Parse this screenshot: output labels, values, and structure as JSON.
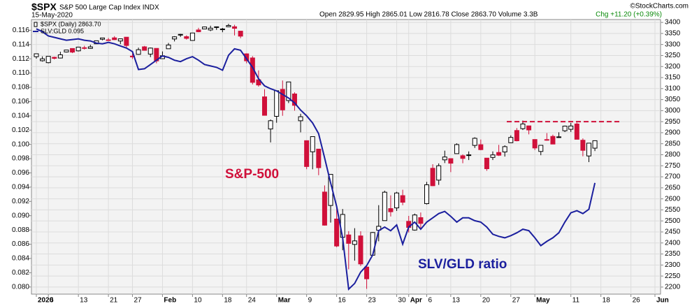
{
  "header": {
    "symbol": "$SPX",
    "name": "S&P 500 Large Cap Index INDX",
    "date": "15-May-2020",
    "source": "©StockCharts.com",
    "summary": "Open 2829.95  High 2865.01  Low 2816.78  Close 2863.70  Volume 3.3B",
    "change": "Chg +11.20 (+0.39%)"
  },
  "chart_data": {
    "type": "candlestick",
    "categories": [
      "2020",
      null,
      "6",
      null,
      null,
      null,
      null,
      "13",
      null,
      null,
      null,
      null,
      "21",
      null,
      null,
      null,
      "27",
      null,
      null,
      null,
      null,
      "Feb",
      null,
      null,
      null,
      null,
      "10",
      null,
      null,
      null,
      null,
      "18",
      null,
      null,
      null,
      "24",
      null,
      null,
      null,
      null,
      "Mar",
      null,
      null,
      null,
      null,
      "9",
      null,
      null,
      null,
      null,
      "16",
      null,
      null,
      null,
      null,
      "23",
      null,
      null,
      null,
      null,
      "30",
      null,
      "Apr",
      null,
      null,
      "6",
      null,
      null,
      null,
      "13",
      null,
      null,
      null,
      null,
      "20",
      null,
      null,
      null,
      null,
      "27",
      null,
      null,
      null,
      "May",
      null,
      null,
      null,
      null,
      null,
      "11",
      null,
      null,
      null,
      null,
      "18",
      null,
      null,
      null,
      null,
      "26",
      null,
      null,
      null,
      "Jun"
    ],
    "ylim": [
      0.079,
      0.1175
    ],
    "yticks": [
      {
        "value": 0.08,
        "label": "0.080"
      },
      0.082,
      0.084,
      0.086,
      0.088,
      {
        "value": 0.09,
        "label": "0.090"
      },
      0.092,
      0.094,
      0.096,
      0.098,
      {
        "value": 0.1,
        "label": "0.100"
      },
      0.102,
      0.104,
      0.106,
      0.108,
      {
        "value": 0.11,
        "label": "0.110"
      },
      0.112,
      0.114,
      0.116
    ],
    "y2lim": [
      2168,
      3413
    ],
    "y2ticks": [
      2200,
      2250,
      2300,
      2350,
      2400,
      2450,
      2500,
      2550,
      2600,
      2650,
      2700,
      2750,
      2800,
      2850,
      2900,
      2950,
      3000,
      3050,
      3100,
      3150,
      3200,
      3250,
      3300,
      3350,
      3400
    ],
    "grid": true,
    "series": [
      {
        "name": "$SPX (Daily) 2863.70",
        "type": "candlestick",
        "axis": "y2",
        "up_color": "#ffffff",
        "down_color": "#d0103a",
        "edge_color": "#000000",
        "open": [
          3244.67,
          3226.36,
          3217.55,
          3241.86,
          3238.59,
          3266.03,
          3281.81,
          3271.13,
          3285.35,
          3282.27,
          3302.97,
          3323.66,
          3321.03,
          3330.02,
          3315.77,
          3333.1,
          3247.16,
          3255.35,
          3289.46,
          3256.45,
          3282.33,
          3235.66,
          3280.61,
          3324.91,
          3344.92,
          3335.54,
          3318.28,
          3365.87,
          3370.5,
          3365.9,
          3378.08,
          3369.04,
          3380.39,
          3380.45,
          3360.5,
          3257.61,
          3238.94,
          3139.9,
          3062.54,
          2916.9,
          2974.28,
          3096.46,
          3045.75,
          3075.7,
          2954.2,
          2863.89,
          2813.48,
          2825.6,
          2630.86,
          2569.99,
          2508.59,
          2425.66,
          2436.5,
          2393.48,
          2431.94,
          2290.71,
          2344.44,
          2457.77,
          2501.29,
          2555.87,
          2558.98,
          2614.69,
          2498.08,
          2458.54,
          2514.92,
          2578.28,
          2738.65,
          2685.0,
          2776.99,
          2782.46,
          2805.1,
          2795.64,
          2799.34,
          2842.43,
          2845.62,
          2784.81,
          2787.89,
          2810.42,
          2812.64,
          2854.65,
          2909.96,
          2918.46,
          2930.91,
          2869.09,
          2815.01,
          2868.88,
          2883.14,
          2878.26,
          2908.83,
          2915.46,
          2939.5,
          2865.86,
          2794.54,
          2829.95,
          null,
          null,
          null,
          null,
          null,
          null,
          null,
          null,
          null,
          null
        ],
        "high": [
          3258.14,
          3246.15,
          3246.84,
          3244.91,
          3267.07,
          3275.58,
          3282.99,
          3288.13,
          3294.25,
          3298.66,
          3317.11,
          3329.88,
          3329.79,
          3337.77,
          3326.88,
          3333.18,
          3258.85,
          3285.78,
          3293.47,
          3285.91,
          3282.33,
          3268.44,
          3306.92,
          3337.58,
          3347.96,
          3341.42,
          3352.26,
          3375.63,
          3381.47,
          3385.09,
          3380.69,
          3375.01,
          3393.52,
          3389.15,
          3360.76,
          3259.81,
          3246.99,
          3182.51,
          3097.07,
          2959.72,
          3090.96,
          3136.72,
          3130.97,
          3083.04,
          2985.93,
          2863.89,
          2882.59,
          2825.6,
          2660.95,
          2711.33,
          2562.98,
          2553.93,
          2453.57,
          2466.97,
          2453.01,
          2300.73,
          2449.71,
          2571.42,
          2637.01,
          2615.91,
          2631.8,
          2641.39,
          2522.75,
          2533.22,
          2538.18,
          2676.85,
          2756.89,
          2760.75,
          2818.57,
          2782.46,
          2851.85,
          2801.88,
          2815.1,
          2879.22,
          2868.98,
          2785.54,
          2815.1,
          2844.9,
          2842.71,
          2887.72,
          2921.15,
          2954.86,
          2930.91,
          2869.09,
          2844.24,
          2898.23,
          2891.11,
          2901.92,
          2932.16,
          2944.25,
          2945.82,
          2874.14,
          2852.8,
          2865.01,
          null,
          null,
          null,
          null,
          null,
          null,
          null,
          null,
          null,
          null
        ],
        "low": [
          3235.53,
          3222.34,
          3214.64,
          3232.43,
          3236.67,
          3263.67,
          3260.86,
          3268.43,
          3277.19,
          3280.69,
          3302.82,
          3318.86,
          3316.61,
          3320.04,
          3301.87,
          3281.53,
          3234.5,
          3253.22,
          3271.89,
          3242.8,
          3214.68,
          3235.66,
          3280.61,
          3313.75,
          3334.39,
          3322.12,
          3317.77,
          3355.61,
          3369.72,
          3360.52,
          3366.15,
          3355.61,
          3378.83,
          3341.02,
          3328.45,
          3214.65,
          3118.77,
          3108.99,
          2977.39,
          2855.84,
          2945.19,
          2976.63,
          3034.38,
          2999.83,
          2901.54,
          2734.43,
          2734.0,
          2707.22,
          2478.86,
          2492.37,
          2380.94,
          2367.04,
          2280.52,
          2319.78,
          2295.56,
          2191.86,
          2344.44,
          2407.53,
          2500.72,
          2520.02,
          2545.28,
          2571.15,
          2447.49,
          2455.79,
          2459.96,
          2574.57,
          2657.67,
          2663.3,
          2762.36,
          2721.17,
          2805.1,
          2761.54,
          2775.95,
          2830.88,
          2820.43,
          2727.1,
          2775.95,
          2794.26,
          2791.76,
          2852.89,
          2860.71,
          2912.16,
          2892.47,
          2821.61,
          2797.85,
          2863.55,
          2847.65,
          2876.48,
          2902.88,
          2903.44,
          2869.59,
          2793.15,
          2766.64,
          2816.78,
          null,
          null,
          null,
          null,
          null,
          null,
          null,
          null,
          null,
          null
        ],
        "close": [
          3257.85,
          3234.85,
          3246.28,
          3237.18,
          3253.05,
          3274.7,
          3265.35,
          3288.13,
          3283.15,
          3289.29,
          3316.81,
          3329.62,
          3320.79,
          3321.75,
          3325.54,
          3295.47,
          3243.63,
          3276.24,
          3273.4,
          3283.66,
          3225.52,
          3248.92,
          3297.59,
          3334.69,
          3345.78,
          3327.71,
          3352.09,
          3357.75,
          3379.45,
          3373.94,
          3380.16,
          3370.29,
          3386.15,
          3373.23,
          3337.75,
          3225.89,
          3128.21,
          3116.39,
          2978.76,
          2954.22,
          3090.23,
          3003.37,
          3130.12,
          3023.94,
          2972.37,
          2746.56,
          2882.23,
          2741.38,
          2480.64,
          2711.02,
          2386.13,
          2529.19,
          2398.1,
          2409.39,
          2304.92,
          2237.4,
          2447.33,
          2475.56,
          2630.07,
          2541.47,
          2626.65,
          2584.59,
          2470.5,
          2526.9,
          2488.65,
          2663.68,
          2659.41,
          2749.98,
          2789.82,
          2761.63,
          2846.06,
          2783.36,
          2799.55,
          2874.56,
          2823.16,
          2736.56,
          2799.31,
          2797.8,
          2836.74,
          2878.48,
          2863.39,
          2939.51,
          2912.43,
          2830.71,
          2842.74,
          2868.44,
          2848.42,
          2881.19,
          2929.8,
          2930.32,
          2870.12,
          2820.0,
          2852.5,
          2863.7,
          null,
          null,
          null,
          null,
          null,
          null,
          null,
          null,
          null,
          null
        ]
      },
      {
        "name": "SLV:GLD 0.095",
        "type": "line",
        "axis": "y",
        "color": "#1b1f9e",
        "values": [
          0.1162,
          0.1158,
          0.1152,
          0.115,
          0.1148,
          0.1146,
          0.1147,
          0.1148,
          0.1146,
          0.1145,
          0.1142,
          0.1141,
          0.1143,
          0.1141,
          0.1138,
          0.1135,
          0.113,
          0.1105,
          0.1106,
          0.1112,
          0.1118,
          0.1124,
          0.1122,
          0.1118,
          0.1116,
          0.112,
          0.1123,
          0.1118,
          0.1112,
          0.111,
          0.1108,
          0.1104,
          0.1125,
          0.1134,
          0.1132,
          0.112,
          0.1108,
          0.1092,
          0.1082,
          0.1078,
          0.1075,
          0.107,
          0.1065,
          0.1058,
          0.1048,
          0.104,
          0.103,
          0.1015,
          0.0981,
          0.0946,
          0.0913,
          0.0869,
          0.0797,
          0.0805,
          0.0821,
          0.083,
          0.0845,
          0.0879,
          0.0884,
          0.0879,
          0.0887,
          0.086,
          0.0884,
          0.0891,
          0.0881,
          0.0891,
          0.0897,
          0.0903,
          0.0906,
          0.0899,
          0.0891,
          0.0897,
          0.0897,
          0.0893,
          0.0891,
          0.0884,
          0.0874,
          0.0871,
          0.0869,
          0.0872,
          0.0876,
          0.0881,
          0.0879,
          0.0869,
          0.0858,
          0.0864,
          0.0869,
          0.0876,
          0.0891,
          0.0904,
          0.0907,
          0.0903,
          0.0909,
          0.0946,
          null,
          null,
          null,
          null,
          null,
          null,
          null,
          null,
          null,
          null
        ]
      }
    ],
    "resistance": {
      "value": 2950,
      "color": "#d0103a",
      "axis": "y2"
    },
    "annotations": [
      {
        "text": "S&P-500",
        "color": "#d0103a"
      },
      {
        "text": "SLV/GLD ratio",
        "color": "#1b1f9e"
      }
    ]
  }
}
